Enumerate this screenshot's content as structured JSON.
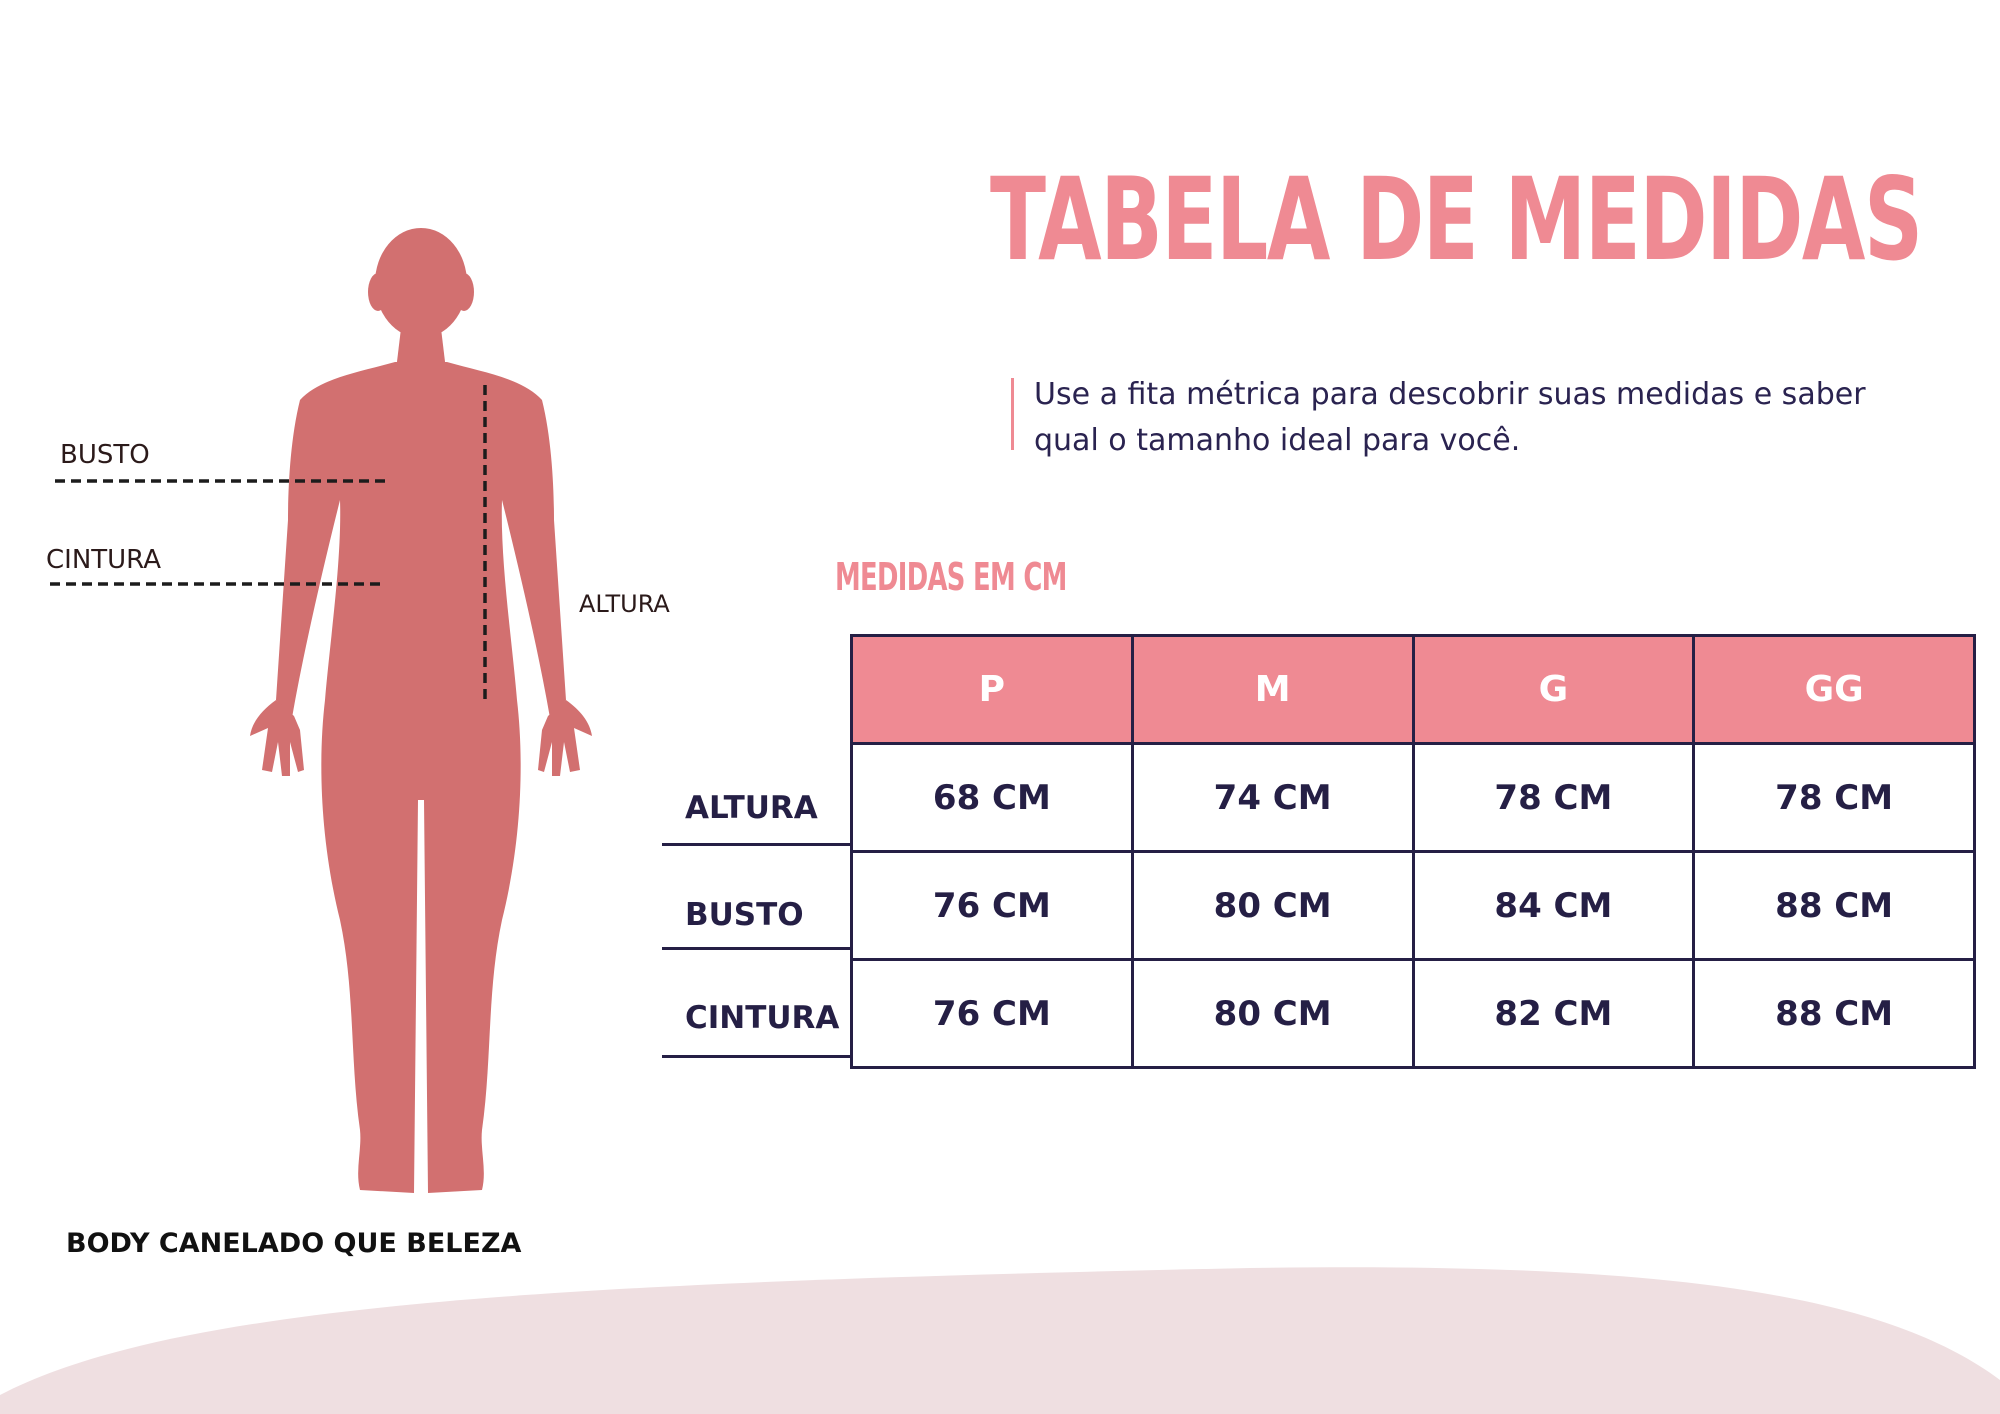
{
  "title": "TABELA DE MEDIDAS",
  "intro": "Use a fita métrica para descobrir suas medidas e saber qual o tamanho ideal para você.",
  "units_label": "MEDIDAS EM CM",
  "figure": {
    "labels": {
      "bust": "BUSTO",
      "waist": "CINTURA",
      "height": "ALTURA"
    }
  },
  "product_name": "BODY CANELADO QUE BELEZA",
  "table": {
    "sizes": [
      "P",
      "M",
      "G",
      "GG"
    ],
    "rows": [
      {
        "label": "ALTURA",
        "values": [
          "68 CM",
          "74 CM",
          "78 CM",
          "78 CM"
        ]
      },
      {
        "label": "BUSTO",
        "values": [
          "76 CM",
          "80 CM",
          "84 CM",
          "88 CM"
        ]
      },
      {
        "label": "CINTURA",
        "values": [
          "76 CM",
          "80 CM",
          "82 CM",
          "88 CM"
        ]
      }
    ]
  },
  "colors": {
    "accent_pink": "#ef8a93",
    "figure": "#d27070",
    "navy": "#251f45",
    "wave": "#efdfe1"
  }
}
